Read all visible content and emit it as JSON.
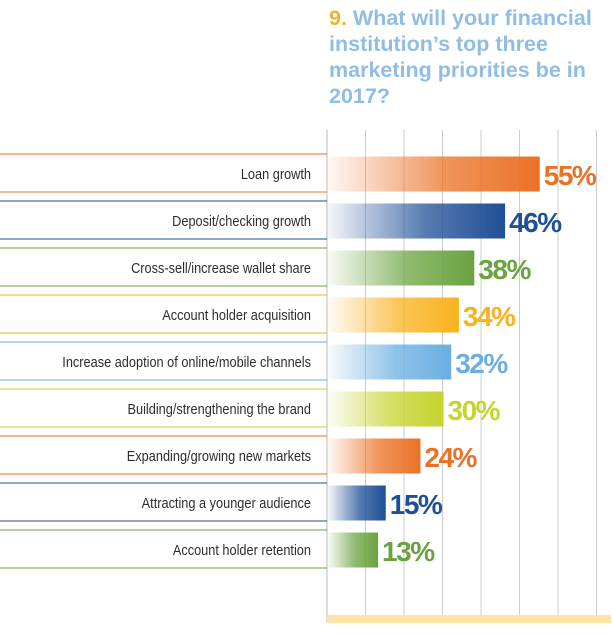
{
  "chart_data": {
    "type": "bar",
    "orientation": "horizontal",
    "title_number": "9.",
    "title": "What will your financial institution’s top three marketing priorities be in 2017?",
    "categories": [
      "Loan growth",
      "Deposit/checking growth",
      "Cross-sell/increase wallet share",
      "Account holder acquisition",
      "Increase adoption of online/mobile channels",
      "Building/strengthening the brand",
      "Expanding/growing new markets",
      "Attracting a younger audience",
      "Account holder retention"
    ],
    "values": [
      55,
      46,
      38,
      34,
      32,
      30,
      24,
      15,
      13
    ],
    "data_labels": [
      "55%",
      "46%",
      "38%",
      "34%",
      "32%",
      "30%",
      "24%",
      "15%",
      "13%"
    ],
    "xlim": [
      0,
      60
    ],
    "grid": true,
    "bar_colors": [
      "#ea7125",
      "#1f4f97",
      "#6aa23f",
      "#f9b21e",
      "#6aaee2",
      "#c5d42e",
      "#ea7125",
      "#1f4f97",
      "#6aa23f"
    ]
  },
  "colors": {
    "title": "#8fbde4",
    "title_number": "#f2b12b",
    "gridline": "#cccccc",
    "baseline": "#fde4a6",
    "label_text": "#2d2d2d"
  }
}
